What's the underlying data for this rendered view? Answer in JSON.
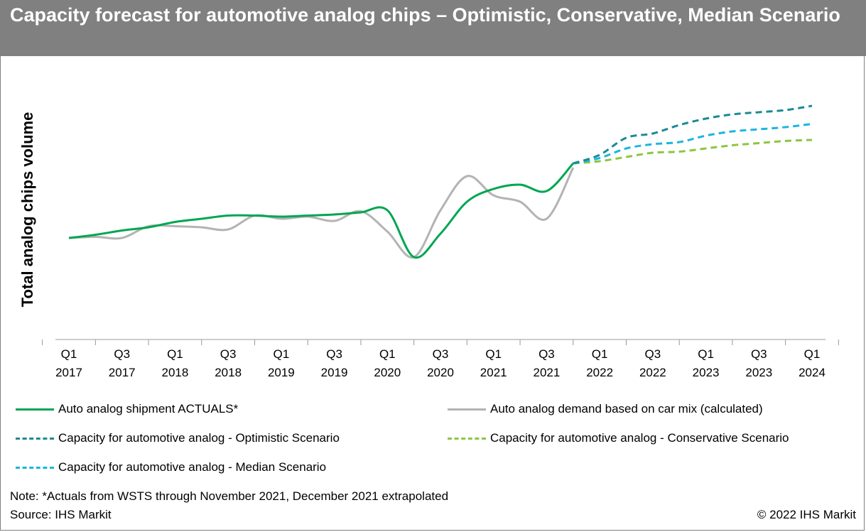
{
  "title": "Capacity forecast for automotive analog chips – Optimistic, Conservative, Median Scenario",
  "note": "Note: *Actuals from WSTS through November 2021, December 2021 extrapolated",
  "source": "Source: IHS Markit",
  "copyright": "© 2022 IHS Markit",
  "colors": {
    "title_background": "#808080",
    "actuals": "#00a651",
    "demand": "#b3b3b3",
    "optimistic": "#1a8a95",
    "conservative": "#8cc63f",
    "median": "#1ab6e0"
  },
  "chart_data": {
    "type": "line",
    "title": "Capacity forecast for automotive analog chips – Optimistic, Conservative, Median Scenario",
    "xlabel": "",
    "ylabel": "Total analog chips volume",
    "y_tick_labels_shown": false,
    "grid": false,
    "legend_position": "bottom",
    "x_unit": "quarter",
    "x_ticks": [
      {
        "q": "Q1",
        "y": "2017"
      },
      {
        "q": "Q3",
        "y": "2017"
      },
      {
        "q": "Q1",
        "y": "2018"
      },
      {
        "q": "Q3",
        "y": "2018"
      },
      {
        "q": "Q1",
        "y": "2019"
      },
      {
        "q": "Q3",
        "y": "2019"
      },
      {
        "q": "Q1",
        "y": "2020"
      },
      {
        "q": "Q3",
        "y": "2020"
      },
      {
        "q": "Q1",
        "y": "2021"
      },
      {
        "q": "Q3",
        "y": "2021"
      },
      {
        "q": "Q1",
        "y": "2022"
      },
      {
        "q": "Q3",
        "y": "2022"
      },
      {
        "q": "Q1",
        "y": "2023"
      },
      {
        "q": "Q3",
        "y": "2023"
      },
      {
        "q": "Q1",
        "y": "2024"
      }
    ],
    "xlim": [
      "Q1 2017",
      "Q1 2024"
    ],
    "ylim": [
      0,
      100
    ],
    "series": [
      {
        "name": "Auto analog shipment ACTUALS*",
        "style": "solid",
        "color_key": "actuals",
        "x": [
          "Q1 2017",
          "Q2 2017",
          "Q3 2017",
          "Q4 2017",
          "Q1 2018",
          "Q2 2018",
          "Q3 2018",
          "Q4 2018",
          "Q1 2019",
          "Q2 2019",
          "Q3 2019",
          "Q4 2019",
          "Q1 2020",
          "Q2 2020",
          "Q3 2020",
          "Q4 2020",
          "Q1 2021",
          "Q2 2021",
          "Q3 2021",
          "Q4 2021"
        ],
        "values": [
          35,
          36.5,
          38.5,
          40,
          42.5,
          44,
          45.5,
          45.5,
          45,
          45.5,
          46,
          47,
          48,
          26,
          37,
          52,
          58,
          60,
          57,
          70
        ]
      },
      {
        "name": "Auto analog demand based on car mix (calculated)",
        "style": "solid",
        "color_key": "demand",
        "x": [
          "Q1 2017",
          "Q2 2017",
          "Q3 2017",
          "Q4 2017",
          "Q1 2018",
          "Q2 2018",
          "Q3 2018",
          "Q4 2018",
          "Q1 2019",
          "Q2 2019",
          "Q3 2019",
          "Q4 2019",
          "Q1 2020",
          "Q2 2020",
          "Q3 2020",
          "Q4 2020",
          "Q1 2021",
          "Q2 2021",
          "Q3 2021",
          "Q4 2021"
        ],
        "values": [
          35,
          35.5,
          35,
          40.5,
          40.5,
          40,
          39,
          45.5,
          44,
          45,
          43,
          47.5,
          38,
          26,
          48,
          64,
          55,
          52,
          44,
          68
        ]
      },
      {
        "name": "Capacity for automotive analog - Optimistic Scenario",
        "style": "dashed",
        "color_key": "optimistic",
        "x": [
          "Q4 2021",
          "Q1 2022",
          "Q2 2022",
          "Q3 2022",
          "Q4 2022",
          "Q1 2023",
          "Q2 2023",
          "Q3 2023",
          "Q4 2023",
          "Q1 2024"
        ],
        "values": [
          70,
          74,
          82,
          84,
          88,
          91,
          93,
          94,
          95,
          97
        ]
      },
      {
        "name": "Capacity for automotive analog - Conservative Scenario",
        "style": "dashed",
        "color_key": "conservative",
        "x": [
          "Q4 2021",
          "Q1 2022",
          "Q2 2022",
          "Q3 2022",
          "Q4 2022",
          "Q1 2023",
          "Q2 2023",
          "Q3 2023",
          "Q4 2023",
          "Q1 2024"
        ],
        "values": [
          70,
          71,
          73,
          75,
          75.5,
          77,
          78.5,
          79.5,
          80.5,
          81
        ]
      },
      {
        "name": "Capacity for automotive analog - Median Scenario",
        "style": "dashed",
        "color_key": "median",
        "x": [
          "Q4 2021",
          "Q1 2022",
          "Q2 2022",
          "Q3 2022",
          "Q4 2022",
          "Q1 2023",
          "Q2 2023",
          "Q3 2023",
          "Q4 2023",
          "Q1 2024"
        ],
        "values": [
          70,
          72.5,
          77,
          79,
          80,
          83,
          85,
          86,
          87,
          88.5
        ]
      }
    ]
  }
}
